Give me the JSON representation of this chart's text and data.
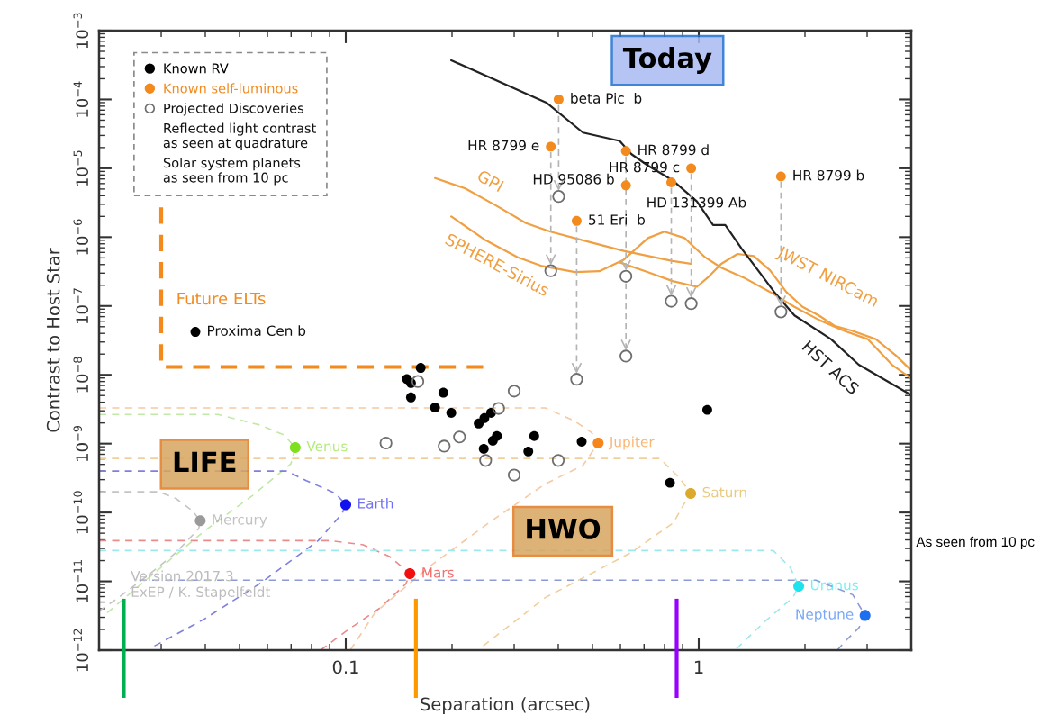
{
  "chart_data": {
    "type": "scatter",
    "xlabel": "Separation (arcsec)",
    "ylabel": "Contrast to Host Star",
    "log": "xy",
    "xlim": [
      0.02,
      4
    ],
    "xticks": [
      0.1,
      1
    ],
    "ylim": [
      1e-12,
      0.001
    ],
    "yticks": [
      {
        "value": 1e-12,
        "label": "10$^{−12}$"
      },
      {
        "value": 1e-11,
        "label": "10$^{−11}$"
      },
      {
        "value": 1e-10,
        "label": "10$^{−10}$"
      },
      {
        "value": 1e-09,
        "label": "10$^{−9}$"
      },
      {
        "value": 1e-08,
        "label": "10$^{−8}$"
      },
      {
        "value": 1e-07,
        "label": "10$^{−7}$"
      },
      {
        "value": 1e-06,
        "label": "10$^{−6}$"
      },
      {
        "value": 1e-05,
        "label": "10$^{−5}$"
      },
      {
        "value": 0.0001,
        "label": "10$^{−4}$"
      },
      {
        "value": 0.001,
        "label": "10$^{−3}$"
      }
    ],
    "legend": "top left",
    "series": [
      {
        "name": "Known RV",
        "marker": "circle",
        "color": "#000000",
        "x": [
          0.163,
          0.149,
          0.153,
          0.153,
          0.189,
          0.179,
          0.199,
          0.238,
          0.247,
          0.258,
          0.268,
          0.261,
          0.342,
          0.329,
          0.246,
          0.466,
          0.829,
          1.057,
          0.0375
        ],
        "values": [
          1.26e-08,
          8.7e-09,
          7.6e-09,
          4.7e-09,
          5.5e-09,
          3.35e-09,
          2.8e-09,
          1.96e-09,
          2.35e-09,
          2.8e-09,
          1.29e-09,
          1.1e-09,
          1.29e-09,
          7.7e-10,
          8.4e-10,
          1.07e-09,
          2.7e-10,
          3.1e-09,
          4.2e-08
        ]
      },
      {
        "name": "Known self-luminous",
        "marker": "circle",
        "color": "#f28a1d",
        "x": [
          0.401,
          0.381,
          0.622,
          0.622,
          0.952,
          0.836,
          1.71,
          0.451
        ],
        "values": [
          0.0001,
          2.06e-05,
          1.78e-05,
          5.66e-06,
          1e-05,
          6.25e-06,
          7.6e-06,
          1.72e-06
        ]
      },
      {
        "name": "Projected Discoveries",
        "marker": "circle",
        "color": "#6e6e6e",
        "x": [
          0.401,
          0.381,
          0.622,
          0.622,
          0.952,
          0.836,
          1.71,
          0.451,
          0.16,
          0.3,
          0.271,
          0.21,
          0.13,
          0.19,
          0.4,
          0.249,
          0.3
        ],
        "values": [
          3.9e-06,
          3.25e-07,
          2.7e-07,
          1.87e-08,
          1.08e-07,
          1.17e-07,
          8.2e-08,
          8.6e-09,
          8e-09,
          5.8e-09,
          3.25e-09,
          1.25e-09,
          1.02e-09,
          9.2e-10,
          5.7e-10,
          5.7e-10,
          3.5e-10
        ]
      },
      {
        "marker": "circle",
        "x": [
          0.0387,
          0.0719,
          0.1,
          0.152,
          0.519,
          0.949,
          1.92,
          2.96
        ],
        "values": [
          7.6e-11,
          8.8e-10,
          1.3e-10,
          1.29e-11,
          1.02e-09,
          1.89e-10,
          8.5e-12,
          3.2e-12
        ],
        "colors": [
          "#9a9a9a",
          "#7ee01e",
          "#1010f0",
          "#f01010",
          "#f7861a",
          "#dca92c",
          "#1ee3ec",
          "#1e6ef0"
        ]
      },
      {
        "type": "line",
        "line_style": "dashed",
        "color": "#c4c4c4",
        "x": [
          0.02,
          0.0295,
          0.033,
          0.0368,
          0.0387,
          0.0383,
          0.033,
          0.0274,
          0.0227,
          0.02
        ],
        "values": [
          2e-10,
          2e-10,
          1.6e-10,
          1.06e-10,
          7.6e-11,
          5.8e-11,
          2.6e-11,
          1.2e-11,
          5.8e-12,
          3.7e-12
        ]
      },
      {
        "type": "line",
        "line_style": "dashed",
        "color": "#c2e8a6",
        "x": [
          0.02,
          0.0435,
          0.0575,
          0.0669,
          0.0719,
          0.0699,
          0.0544,
          0.0396,
          0.0279,
          0.0211
        ],
        "values": [
          2.65e-09,
          2.65e-09,
          1.85e-09,
          1.33e-09,
          8.8e-10,
          5.1e-10,
          1.76e-10,
          5.3e-11,
          1.17e-11,
          3.5e-12
        ]
      },
      {
        "type": "line",
        "line_style": "dashed",
        "color": "#7f7fe0",
        "x": [
          0.02,
          0.068,
          0.0773,
          0.0934,
          0.1,
          0.0976,
          0.0835,
          0.0575,
          0.0396,
          0.0287
        ],
        "values": [
          4e-10,
          4e-10,
          2.9e-10,
          1.9e-10,
          1.3e-10,
          9.6e-11,
          3.9e-11,
          9.5e-12,
          2.8e-12,
          1.15e-12
        ]
      },
      {
        "type": "line",
        "line_style": "dashed",
        "color": "#eb8a8a",
        "x": [
          0.02,
          0.0898,
          0.112,
          0.133,
          0.152,
          0.148,
          0.125,
          0.1004,
          0.0849
        ],
        "values": [
          3.9e-11,
          3.9e-11,
          3.4e-11,
          2.3e-11,
          1.29e-11,
          9.2e-12,
          4.1e-12,
          1.9e-12,
          1e-12
        ]
      },
      {
        "type": "line",
        "line_style": "dashed",
        "color": "#f5c9a3",
        "x": [
          0.02,
          0.3675,
          0.444,
          0.497,
          0.519,
          0.4695,
          0.3675,
          0.2545,
          0.175,
          0.121,
          0.103
        ],
        "values": [
          3.3e-09,
          3.3e-09,
          2.15e-09,
          1.45e-09,
          1.02e-09,
          4.8e-10,
          2.6e-10,
          7.1e-11,
          1.73e-11,
          3.5e-12,
          1e-12
        ]
      },
      {
        "type": "line",
        "line_style": "dashed",
        "color": "#f0cf9c",
        "x": [
          0.02,
          0.775,
          0.881,
          0.949,
          0.906,
          0.848,
          0.642,
          0.3675,
          0.245
        ],
        "values": [
          6.1e-10,
          6.1e-10,
          3.2e-10,
          1.89e-10,
          1.3e-10,
          7.1e-11,
          2.6e-11,
          5.8e-12,
          1.15e-12
        ]
      },
      {
        "type": "line",
        "line_style": "dashed",
        "color": "#9ee8ec",
        "x": [
          0.02,
          1.626,
          1.818,
          1.92,
          1.848,
          1.538,
          1.28
        ],
        "values": [
          2.8e-11,
          2.8e-11,
          1.58e-11,
          8.5e-12,
          5.8e-12,
          2.6e-12,
          1.05e-12
        ]
      },
      {
        "type": "line",
        "line_style": "dashed",
        "color": "#8c9ad6",
        "x": [
          0.026,
          2.148,
          2.73,
          2.96,
          2.84,
          2.582,
          2.47
        ],
        "values": [
          1.04e-11,
          1.04e-11,
          6.4e-12,
          3.2e-12,
          2.1e-12,
          1.3e-12,
          1e-12
        ]
      },
      {
        "name": "GPI",
        "type": "line",
        "color": "#f0a042",
        "x": [
          0.179,
          0.218,
          0.269,
          0.324,
          0.38,
          0.47,
          0.613,
          0.843,
          0.949
        ],
        "values": [
          7.2e-06,
          5.1e-06,
          2.8e-06,
          1.6e-06,
          1.2e-06,
          9e-07,
          6.3e-07,
          4.5e-07,
          4.1e-07
        ]
      },
      {
        "name": "SPHERE-Sirius",
        "type": "line",
        "color": "#f0a042",
        "x": [
          0.199,
          0.249,
          0.307,
          0.36,
          0.446,
          0.523,
          0.613,
          0.718,
          0.799,
          0.912,
          1.042,
          1.158,
          1.358,
          1.592,
          1.867,
          2.188,
          2.567,
          3.01,
          3.527,
          3.97
        ],
        "values": [
          2e-06,
          9e-07,
          5.1e-07,
          3.8e-07,
          3.1e-07,
          3.2e-07,
          4.7e-07,
          9.7e-07,
          1.2e-06,
          9.7e-07,
          5.1e-07,
          3.6e-07,
          2.5e-07,
          1.6e-07,
          9.7e-08,
          6.3e-08,
          4.4e-08,
          3.3e-08,
          1.4e-08,
          9.1e-09
        ]
      },
      {
        "name": "JWST NIRCam",
        "type": "line",
        "color": "#f0a042",
        "x": [
          0.597,
          0.718,
          0.843,
          0.988,
          1.07,
          1.158,
          1.288,
          1.432,
          1.592,
          1.77,
          1.968,
          2.188,
          2.434,
          2.706,
          3.173,
          3.622,
          3.97
        ],
        "values": [
          4.3e-07,
          3.1e-07,
          2.3e-07,
          1.9e-07,
          2.7e-07,
          4.1e-07,
          5.7e-07,
          5.3e-07,
          3.3e-07,
          1.6e-07,
          9.7e-08,
          7.3e-08,
          5.1e-08,
          4.4e-08,
          3.3e-08,
          1.9e-08,
          1.2e-08
        ]
      },
      {
        "name": "HST ACS",
        "type": "line",
        "color": "#222222",
        "x": [
          0.199,
          0.37,
          0.47,
          0.597,
          0.645,
          0.717,
          0.843,
          0.988,
          1.098,
          1.189,
          1.323,
          1.472,
          1.636,
          1.867,
          2.37,
          2.84,
          3.97
        ],
        "values": [
          0.00037,
          9e-05,
          3.3e-05,
          2.5e-05,
          1.6e-05,
          1.1e-05,
          6.7e-06,
          3.3e-06,
          1.5e-06,
          1.5e-06,
          6.8e-07,
          3.3e-07,
          1.6e-07,
          7.3e-08,
          3.3e-08,
          1.4e-08,
          5.2e-09
        ]
      },
      {
        "name": "Future ELTs",
        "type": "line",
        "line_style": "dashed",
        "color": "#f28a1d",
        "x": [
          0.03,
          0.03,
          0.245
        ],
        "values": [
          2.7e-06,
          1.3e-08,
          1.3e-08
        ]
      }
    ],
    "ref_lines": [
      {
        "axis": "x",
        "value": 0.0235,
        "color": "#00b050"
      },
      {
        "axis": "x",
        "value": 0.158,
        "color": "#ff9900"
      },
      {
        "axis": "x",
        "value": 0.866,
        "color": "#9a00ff"
      }
    ],
    "annotations": [
      {
        "text": "beta Pic  b",
        "x": 0.401,
        "y": 0.0001
      },
      {
        "text": "HR 8799 e",
        "x": 0.381,
        "y": 2.06e-05
      },
      {
        "text": "HR 8799 d",
        "x": 0.622,
        "y": 1.78e-05
      },
      {
        "text": "HR 8799 c",
        "x": 0.952,
        "y": 1e-05
      },
      {
        "text": "HD 95086 b",
        "x": 0.622,
        "y": 5.66e-06
      },
      {
        "text": "HD 131399 Ab",
        "x": 0.836,
        "y": 6.25e-06
      },
      {
        "text": "HR 8799 b",
        "x": 1.71,
        "y": 7.6e-06
      },
      {
        "text": "51 Eri  b",
        "x": 0.451,
        "y": 1.72e-06
      },
      {
        "text": "Proxima Cen b",
        "x": 0.0375,
        "y": 4.2e-08
      },
      {
        "text": "Mercury",
        "x": 0.0387,
        "y": 7.6e-11
      },
      {
        "text": "Venus",
        "x": 0.0719,
        "y": 8.8e-10
      },
      {
        "text": "Earth",
        "x": 0.1,
        "y": 1.3e-10
      },
      {
        "text": "Mars",
        "x": 0.152,
        "y": 1.29e-11
      },
      {
        "text": "Jupiter",
        "x": 0.519,
        "y": 1.02e-09
      },
      {
        "text": "Saturn",
        "x": 0.949,
        "y": 1.89e-10
      },
      {
        "text": "Uranus",
        "x": 1.92,
        "y": 8.5e-12
      },
      {
        "text": "Neptune",
        "x": 2.96,
        "y": 3.2e-12
      },
      "Reflected light contrast\nas seen at quadrature",
      "Solar system planets\nas seen from 10 pc",
      "Today",
      "LIFE",
      "HWO",
      "Version 2017.3\nExEP / K. Stapelfeldt",
      "As seen from 10 pc"
    ]
  }
}
